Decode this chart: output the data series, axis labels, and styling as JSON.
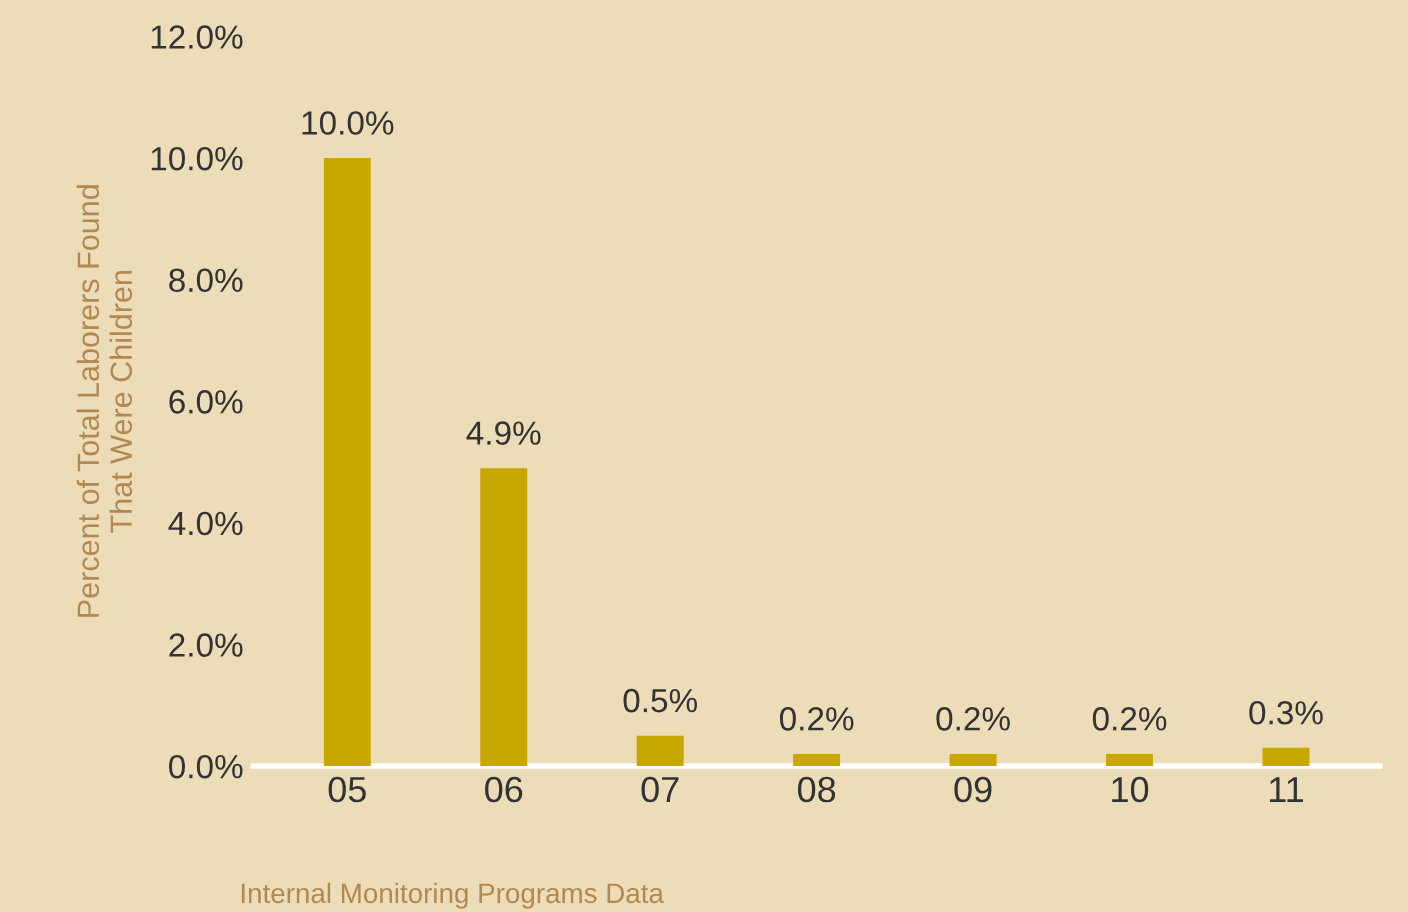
{
  "chart_data": {
    "type": "bar",
    "ylabel": "Percent of Total Laborers Found\nThat Were Children",
    "categories": [
      "05",
      "06",
      "07",
      "08",
      "09",
      "10",
      "11"
    ],
    "values": [
      10.0,
      4.9,
      0.5,
      0.2,
      0.2,
      0.2,
      0.3
    ],
    "value_labels": [
      "10.0%",
      "4.9%",
      "0.5%",
      "0.2%",
      "0.2%",
      "0.2%",
      "0.3%"
    ],
    "color": "#c8a800",
    "ylim": [
      0,
      12
    ],
    "yticks": [
      {
        "value": 0,
        "label": "0.0%"
      },
      {
        "value": 2,
        "label": "2.0%"
      },
      {
        "value": 4,
        "label": "4.0%"
      },
      {
        "value": 6,
        "label": "6.0%"
      },
      {
        "value": 8,
        "label": "8.0%"
      },
      {
        "value": 10,
        "label": "10.0%"
      },
      {
        "value": 12,
        "label": "12.0%"
      }
    ],
    "grid": false,
    "annotations": [
      "Internal Monitoring Programs Data"
    ]
  }
}
